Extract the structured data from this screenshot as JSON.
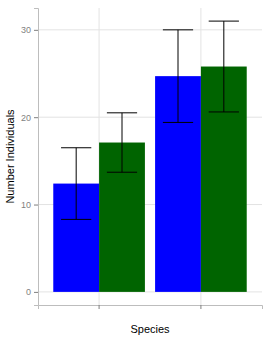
{
  "chart_data": {
    "type": "bar",
    "x_label": "Species",
    "y_label": "Number Individuals",
    "categories": [
      null,
      null
    ],
    "series": [
      {
        "color": "#0000ff",
        "values": [
          12.4,
          24.7
        ],
        "errors": [
          4.1,
          5.3
        ]
      },
      {
        "color": "#006400",
        "values": [
          17.1,
          25.8
        ],
        "errors": [
          3.4,
          5.2
        ]
      }
    ],
    "ylim": [
      -1.5,
      32.5
    ],
    "yticks": [
      0,
      10,
      20,
      30
    ],
    "grid": true,
    "tick_labels": "y"
  }
}
